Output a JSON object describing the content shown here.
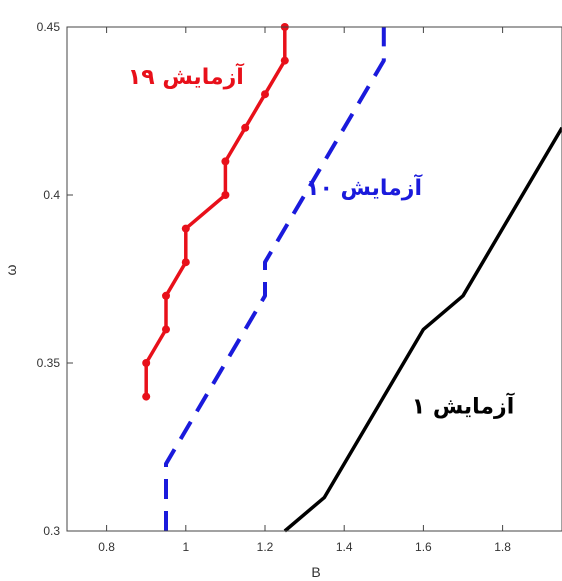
{
  "chart_data": {
    "type": "line",
    "title": "",
    "xlabel": "B",
    "ylabel": "ω",
    "xlim": [
      0.7,
      1.95
    ],
    "ylim": [
      0.3,
      0.45
    ],
    "x_ticks": [
      "0.8",
      "1",
      "1.2",
      "1.4",
      "1.6",
      "1.8"
    ],
    "y_ticks": [
      "0.3",
      "0.35",
      "0.4",
      "0.45"
    ],
    "grid": false,
    "series": [
      {
        "name": "آزمایش ۱۹",
        "color": "#e8101a",
        "style": "solid",
        "markers": true,
        "x": [
          0.9,
          0.9,
          0.95,
          0.95,
          1.0,
          1.0,
          1.1,
          1.1,
          1.15,
          1.2,
          1.25,
          1.25
        ],
        "y": [
          0.34,
          0.35,
          0.36,
          0.37,
          0.38,
          0.39,
          0.4,
          0.41,
          0.42,
          0.43,
          0.44,
          0.45
        ]
      },
      {
        "name": "آزمایش ۱۰",
        "color": "#1a1adc",
        "style": "dashed",
        "markers": false,
        "x": [
          0.95,
          0.95,
          1.2,
          1.2,
          1.5,
          1.5
        ],
        "y": [
          0.3,
          0.32,
          0.37,
          0.38,
          0.44,
          0.45
        ]
      },
      {
        "name": "آزمایش ۱",
        "color": "#000000",
        "style": "solid",
        "markers": false,
        "x": [
          1.25,
          1.35,
          1.6,
          1.7,
          1.95
        ],
        "y": [
          0.3,
          0.31,
          0.36,
          0.37,
          0.42
        ]
      }
    ],
    "annotations": [
      {
        "text": "آزمایش ۱۹",
        "color": "#e8101a",
        "x": 1.0,
        "y": 0.433
      },
      {
        "text": "آزمایش ۱۰",
        "color": "#1a1adc",
        "x": 1.45,
        "y": 0.4
      },
      {
        "text": "آزمایش ۱",
        "color": "#000000",
        "x": 1.7,
        "y": 0.335
      }
    ]
  }
}
